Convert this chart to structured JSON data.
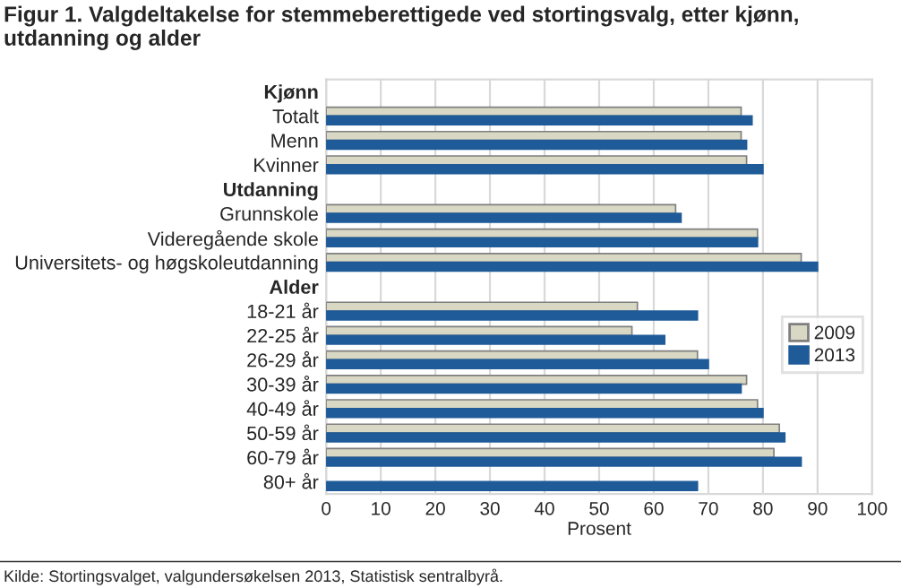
{
  "chart_data": {
    "type": "bar",
    "orientation": "horizontal",
    "title": "Figur 1. Valgdeltakelse for stemmeberettigede ved stortingsvalg, etter kjønn, utdanning og alder",
    "xlabel": "Prosent",
    "categories": [
      "Kjønn",
      "Totalt",
      "Menn",
      "Kvinner",
      "Utdanning",
      "Grunnskole",
      "Videregående skole",
      "Universitets- og høgskoleutdanning",
      "Alder",
      "18-21 år",
      "22-25 år",
      "26-29 år",
      "30-39 år",
      "40-49 år",
      "50-59 år",
      "60-79 år",
      "80+ år"
    ],
    "series": [
      {
        "name": "2009",
        "color": "#d9d8c4",
        "values": [
          null,
          76,
          76,
          77,
          null,
          64,
          79,
          87,
          null,
          57,
          56,
          68,
          77,
          79,
          83,
          82,
          null
        ]
      },
      {
        "name": "2013",
        "color": "#1f5b98",
        "values": [
          null,
          78,
          77,
          80,
          null,
          65,
          79,
          90,
          null,
          68,
          62,
          70,
          76,
          80,
          84,
          87,
          68
        ]
      }
    ],
    "xlim": [
      0,
      100
    ],
    "xticks": [
      0,
      10,
      20,
      30,
      40,
      50,
      60,
      70,
      80,
      90,
      100
    ],
    "grid": "x",
    "legend": "right",
    "annotations": [
      "Kilde: Stortingsvalget, valgundersøkelsen 2013, Statistisk sentralbyrå."
    ]
  }
}
